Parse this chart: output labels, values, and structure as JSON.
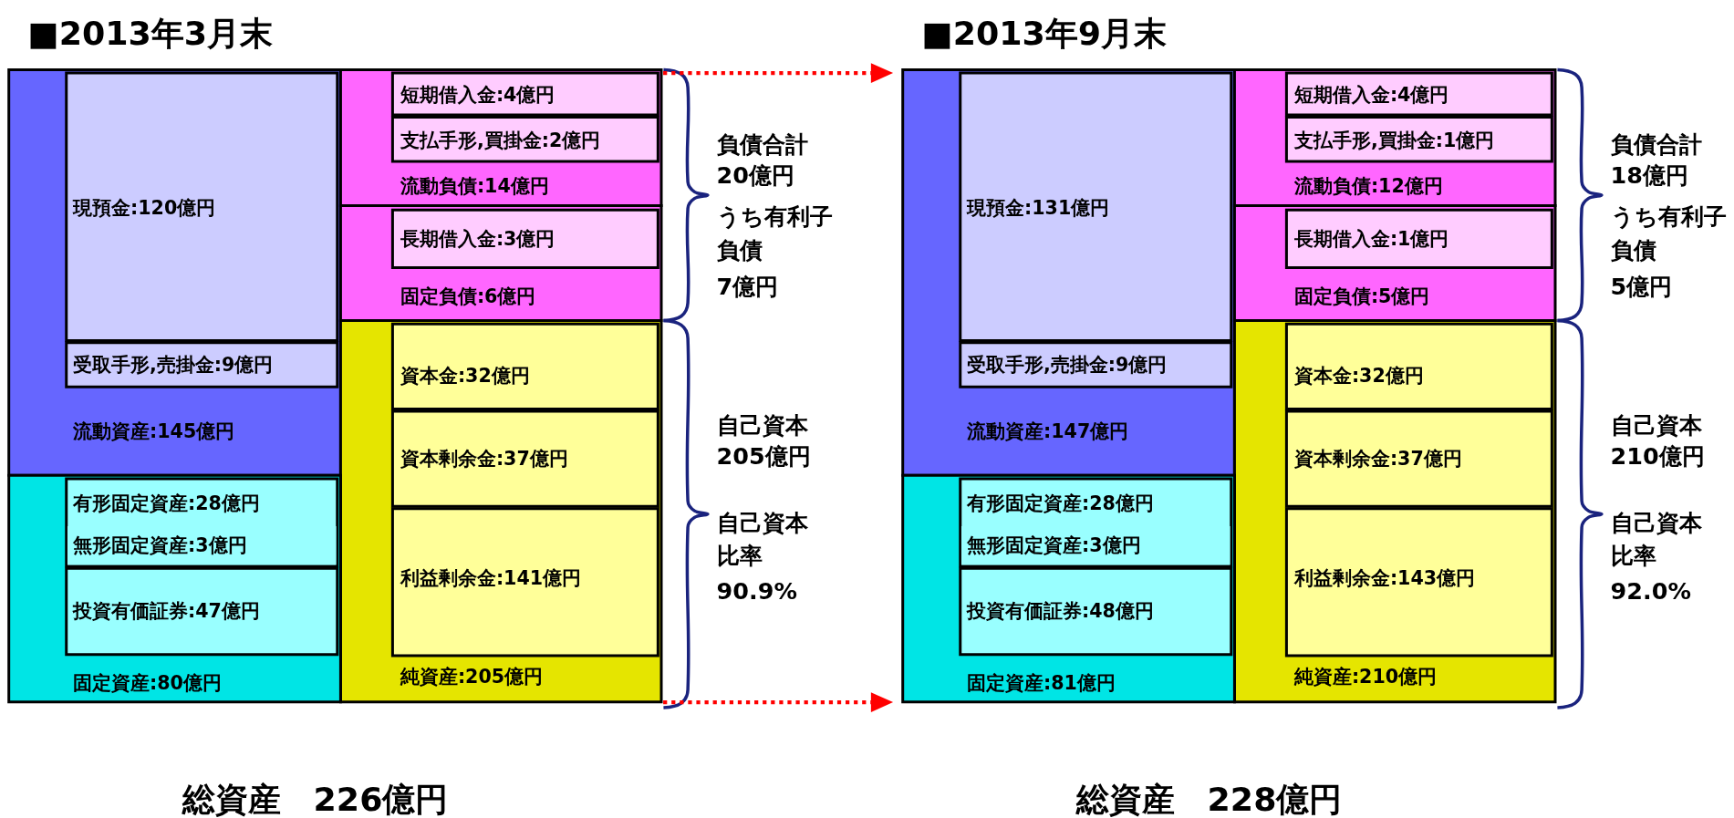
{
  "chart_data": [
    {
      "type": "other",
      "title": "■2013年3月末",
      "categories": [
        "現預金",
        "受取手形,売掛金",
        "流動資産",
        "有形固定資産",
        "無形固定資産",
        "投資有価証券",
        "固定資産",
        "短期借入金",
        "支払手形,買掛金",
        "流動負債",
        "長期借入金",
        "固定負債",
        "資本金",
        "資本剰余金",
        "利益剰余金",
        "純資産"
      ],
      "values": [
        120,
        9,
        145,
        28,
        3,
        47,
        80,
        4,
        2,
        14,
        3,
        6,
        32,
        37,
        141,
        205
      ],
      "value_labels": [
        ":120億円",
        ":9億円",
        ":145億円",
        ":28億円",
        ":3億円",
        ":47億円",
        ":80億円",
        ":4億円",
        ":2億円",
        ":14億円",
        ":3億円",
        ":6億円",
        ":32億円",
        ":37億円",
        ":141億円",
        ":205億円"
      ],
      "colors": [
        "#ccccff",
        "#ccccff",
        "#6666ff",
        "#99ffff",
        "#99ffff",
        "#99ffff",
        "#00e5e5",
        "#ffccff",
        "#ffccff",
        "#ff66ff",
        "#ffccff",
        "#ff66ff",
        "#ffff99",
        "#ffff99",
        "#ffff99",
        "#e5e500"
      ],
      "annotations": [
        "負債合計",
        "20億円",
        "うち有利子",
        "負債",
        "7億円",
        "自己資本",
        "205億円",
        "自己資本",
        "比率",
        "90.9%",
        "総資産　226億円"
      ]
    },
    {
      "type": "other",
      "title": "■2013年9月末",
      "categories": [
        "現預金",
        "受取手形,売掛金",
        "流動資産",
        "有形固定資産",
        "無形固定資産",
        "投資有価証券",
        "固定資産",
        "短期借入金",
        "支払手形,買掛金",
        "流動負債",
        "長期借入金",
        "固定負債",
        "資本金",
        "資本剰余金",
        "利益剰余金",
        "純資産"
      ],
      "values": [
        131,
        9,
        147,
        28,
        3,
        48,
        81,
        4,
        1,
        12,
        1,
        5,
        32,
        37,
        143,
        210
      ],
      "value_labels": [
        ":131億円",
        ":9億円",
        ":147億円",
        ":28億円",
        ":3億円",
        ":48億円",
        ":81億円",
        ":4億円",
        ":1億円",
        ":12億円",
        ":1億円",
        ":5億円",
        ":32億円",
        ":37億円",
        ":143億円",
        ":210億円"
      ],
      "colors": [
        "#ccccff",
        "#ccccff",
        "#6666ff",
        "#99ffff",
        "#99ffff",
        "#99ffff",
        "#00e5e5",
        "#ffccff",
        "#ffccff",
        "#ff66ff",
        "#ffccff",
        "#ff66ff",
        "#ffff99",
        "#ffff99",
        "#ffff99",
        "#e5e500"
      ],
      "annotations": [
        "負債合計",
        "18億円",
        "うち有利子",
        "負債",
        "5億円",
        "自己資本",
        "210億円",
        "自己資本",
        "比率",
        "92.0%",
        "総資産　228億円"
      ]
    }
  ]
}
